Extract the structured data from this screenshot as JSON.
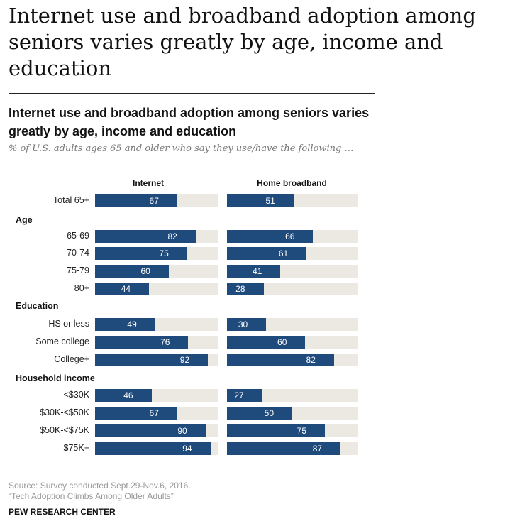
{
  "page_title": "Internet use and broadband adoption among seniors varies greatly by age, income and education",
  "chart_data": {
    "type": "bar",
    "title": "Internet  use and broadband  adoption among seniors varies greatly by age, income and education",
    "subtitle": "% of U.S. adults ages 65 and older who say they use/have the following …",
    "xlim": [
      0,
      100
    ],
    "series": [
      {
        "name": "Internet",
        "color": "#1f4a7c"
      },
      {
        "name": "Home broadband",
        "color": "#1f4a7c"
      }
    ],
    "track_color": "#ece9e3",
    "rows": [
      {
        "type": "row",
        "label": "Total 65+",
        "values": [
          67,
          51
        ]
      },
      {
        "type": "group",
        "label": "Age"
      },
      {
        "type": "row",
        "label": "65-69",
        "values": [
          82,
          66
        ]
      },
      {
        "type": "row",
        "label": "70-74",
        "values": [
          75,
          61
        ]
      },
      {
        "type": "row",
        "label": "75-79",
        "values": [
          60,
          41
        ]
      },
      {
        "type": "row",
        "label": "80+",
        "values": [
          44,
          28
        ]
      },
      {
        "type": "group",
        "label": "Education"
      },
      {
        "type": "row",
        "label": "HS or less",
        "values": [
          49,
          30
        ]
      },
      {
        "type": "row",
        "label": "Some college",
        "values": [
          76,
          60
        ]
      },
      {
        "type": "row",
        "label": "College+",
        "values": [
          92,
          82
        ]
      },
      {
        "type": "group",
        "label": "Household income"
      },
      {
        "type": "row",
        "label": "<$30K",
        "values": [
          46,
          27
        ]
      },
      {
        "type": "row",
        "label": "$30K-<$50K",
        "values": [
          67,
          50
        ]
      },
      {
        "type": "row",
        "label": "$50K-<$75K",
        "values": [
          90,
          75
        ]
      },
      {
        "type": "row",
        "label": "$75K+",
        "values": [
          94,
          87
        ]
      }
    ]
  },
  "footer": {
    "source": "Source: Survey conducted Sept.29-Nov.6, 2016.",
    "report": "“Tech Adoption Climbs Among Older Adults”",
    "brand": "PEW RESEARCH CENTER"
  }
}
